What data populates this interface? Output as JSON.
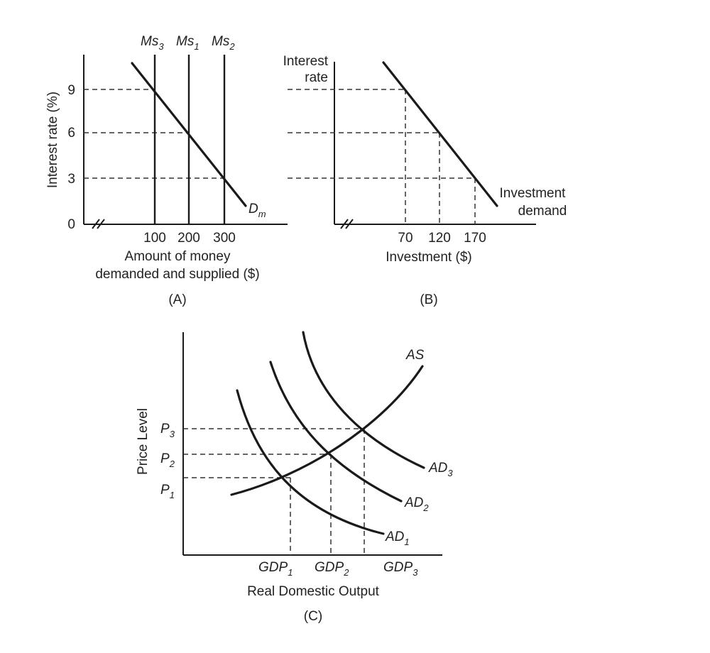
{
  "chart_data": [
    {
      "type": "line",
      "panel": "(A)",
      "ylabel": "Interest rate (%)",
      "xlabel_lines": [
        "Amount of money",
        "demanded and supplied ($)"
      ],
      "y_ticks": [
        "0",
        "3",
        "6",
        "9"
      ],
      "x_ticks": [
        "100",
        "200",
        "300"
      ],
      "series": [
        {
          "name": "Dm",
          "main": "D",
          "sub": "m",
          "x": [
            100,
            200,
            300
          ],
          "y": [
            9,
            6,
            3
          ]
        },
        {
          "name": "Ms3",
          "main": "Ms",
          "sub": "3",
          "x_vertical": 100
        },
        {
          "name": "Ms1",
          "main": "Ms",
          "sub": "1",
          "x_vertical": 200
        },
        {
          "name": "Ms2",
          "main": "Ms",
          "sub": "2",
          "x_vertical": 300
        }
      ]
    },
    {
      "type": "line",
      "panel": "(B)",
      "ylabel_lines": [
        "Interest",
        "rate"
      ],
      "xlabel": "Investment ($)",
      "x_ticks": [
        "70",
        "120",
        "170"
      ],
      "curve_label_lines": [
        "Investment",
        "demand"
      ],
      "series": [
        {
          "name": "Investment demand",
          "x": [
            70,
            120,
            170
          ],
          "y": [
            9,
            6,
            3
          ]
        }
      ]
    },
    {
      "type": "line",
      "panel": "(C)",
      "ylabel": "Price Level",
      "xlabel": "Real Domestic Output",
      "equilibria": [
        {
          "price": {
            "main": "P",
            "sub": "1"
          },
          "gdp": {
            "main": "GDP",
            "sub": "1"
          },
          "curve": {
            "main": "AD",
            "sub": "1"
          }
        },
        {
          "price": {
            "main": "P",
            "sub": "2"
          },
          "gdp": {
            "main": "GDP",
            "sub": "2"
          },
          "curve": {
            "main": "AD",
            "sub": "2"
          }
        },
        {
          "price": {
            "main": "P",
            "sub": "3"
          },
          "gdp": {
            "main": "GDP",
            "sub": "3"
          },
          "curve": {
            "main": "AD",
            "sub": "3"
          }
        }
      ],
      "series": [
        {
          "name": "AS",
          "label": "AS"
        },
        {
          "name": "AD1"
        },
        {
          "name": "AD2"
        },
        {
          "name": "AD3"
        }
      ]
    }
  ]
}
